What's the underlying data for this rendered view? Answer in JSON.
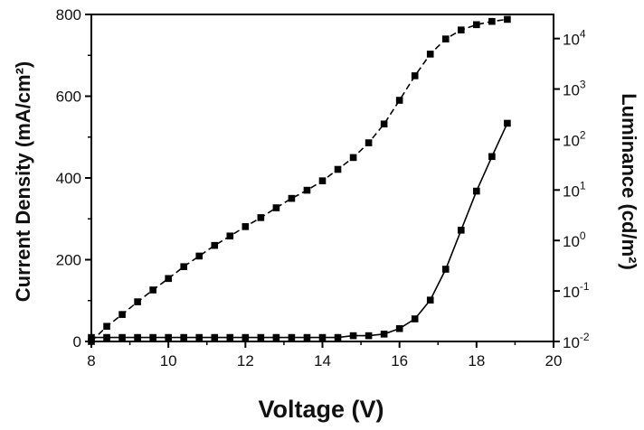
{
  "chart_data": {
    "type": "line",
    "title": "",
    "xlabel": "Voltage (V)",
    "ylabel": "Current Density (mA/cm²)",
    "ylabel_right": "Luminance (cd/m²)",
    "xlim": [
      8,
      20
    ],
    "ylim": [
      0,
      800
    ],
    "ylim_right": [
      0.01,
      30000
    ],
    "y_right_scale": "log",
    "grid": false,
    "legend": "none",
    "x_ticks": [
      8,
      10,
      12,
      14,
      16,
      18,
      20
    ],
    "y_ticks": [
      0,
      200,
      400,
      600,
      800
    ],
    "y_right_ticks": [
      {
        "base": "10",
        "exp": "-2",
        "value": 0.01
      },
      {
        "base": "10",
        "exp": "-1",
        "value": 0.1
      },
      {
        "base": "10",
        "exp": "0",
        "value": 1
      },
      {
        "base": "10",
        "exp": "1",
        "value": 10
      },
      {
        "base": "10",
        "exp": "2",
        "value": 100
      },
      {
        "base": "10",
        "exp": "3",
        "value": 1000
      },
      {
        "base": "10",
        "exp": "4",
        "value": 10000
      }
    ],
    "series": [
      {
        "axis": "left",
        "color": "#000000",
        "dash": "dashed",
        "marker": "square",
        "x": [
          8.0,
          8.4,
          8.8,
          9.2,
          9.6,
          10.0,
          10.4,
          10.8,
          11.2,
          11.6,
          12.0,
          12.4,
          12.8,
          13.2,
          13.6,
          14.0,
          14.4,
          14.8,
          15.2,
          15.6,
          16.0,
          16.4,
          16.8,
          17.2,
          17.6,
          18.0,
          18.4,
          18.8
        ],
        "y": [
          0,
          37,
          66,
          97,
          126,
          154,
          183,
          209,
          235,
          258,
          281,
          303,
          327,
          350,
          370,
          393,
          421,
          450,
          486,
          532,
          590,
          650,
          703,
          740,
          762,
          775,
          783,
          788
        ]
      },
      {
        "axis": "right",
        "color": "#000000",
        "dash": "solid",
        "marker": "square",
        "x": [
          8.0,
          8.4,
          8.8,
          9.2,
          9.6,
          10.0,
          10.4,
          10.8,
          11.2,
          11.6,
          12.0,
          12.4,
          12.8,
          13.2,
          13.6,
          14.0,
          14.4,
          14.8,
          15.2,
          15.6,
          16.0,
          16.4,
          16.8,
          17.2,
          17.6,
          18.0,
          18.4,
          18.8
        ],
        "y": [
          0.012,
          0.012,
          0.012,
          0.012,
          0.012,
          0.012,
          0.012,
          0.012,
          0.012,
          0.012,
          0.012,
          0.012,
          0.012,
          0.012,
          0.012,
          0.012,
          0.012,
          0.013,
          0.013,
          0.014,
          0.018,
          0.028,
          0.066,
          0.27,
          1.6,
          9.5,
          46,
          210
        ]
      }
    ]
  }
}
